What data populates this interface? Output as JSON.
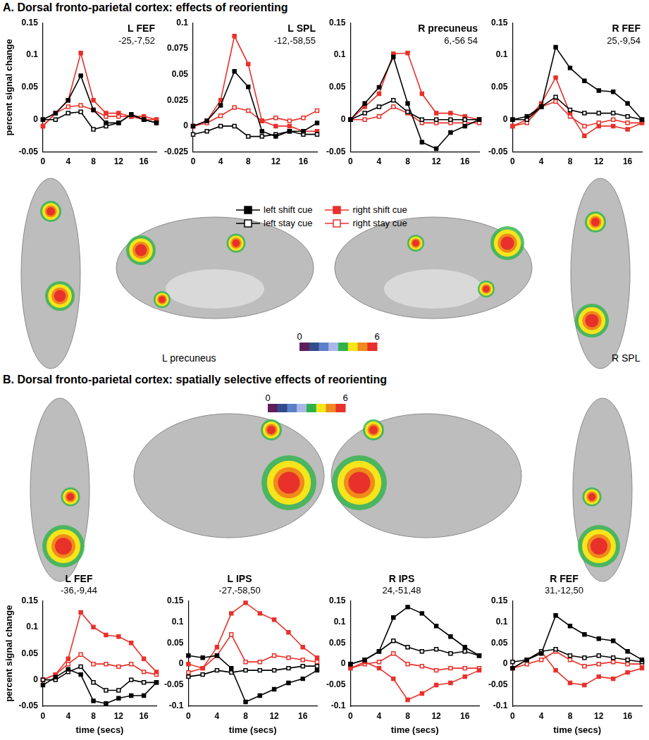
{
  "panels": [
    {
      "title": "A. Dorsal fronto-parietal cortex: effects of reorienting",
      "colorbar": {
        "range": [
          0,
          6
        ],
        "ticks": [
          0,
          6
        ]
      },
      "brain_labels": [
        "L precuneus",
        "R SPL"
      ]
    },
    {
      "title": "B. Dorsal fronto-parietal cortex: spatially selective effects of reorienting",
      "colorbar": {
        "range": [
          0,
          6
        ],
        "ticks": [
          0,
          6
        ]
      },
      "brain_labels": []
    }
  ],
  "chart_data": [
    {
      "type": "line",
      "title": "L FEF",
      "subtitle": "-25,-7,52",
      "ylabel": "percent signal change",
      "x": [
        0,
        2,
        4,
        6,
        8,
        10,
        12,
        14,
        16,
        18
      ],
      "xlim": [
        0,
        18
      ],
      "xticks": [
        0,
        4,
        8,
        12,
        16
      ],
      "ylim": [
        -0.05,
        0.15
      ],
      "yticks": [
        -0.05,
        0,
        0.05,
        0.1,
        0.15
      ],
      "grid": false,
      "series": [
        {
          "name": "left shift cue",
          "color": "#000000",
          "marker": "square",
          "values": [
            0,
            0.01,
            0.03,
            0.068,
            0.015,
            -0.005,
            -0.005,
            0.008,
            0,
            -0.005
          ]
        },
        {
          "name": "left stay cue",
          "color": "#000000",
          "marker": "open_square",
          "values": [
            0,
            0,
            0.01,
            0.012,
            -0.015,
            -0.01,
            -0.005,
            0.008,
            0,
            -0.005
          ]
        },
        {
          "name": "right shift cue",
          "color": "#e8312a",
          "marker": "square",
          "values": [
            -0.01,
            0.01,
            0.03,
            0.103,
            0.03,
            0.01,
            0.01,
            0.005,
            0.005,
            0
          ]
        },
        {
          "name": "right stay cue",
          "color": "#e8312a",
          "marker": "open_square",
          "values": [
            -0.01,
            0.01,
            0.02,
            0.022,
            0.015,
            0.005,
            0.005,
            0.005,
            0,
            0
          ]
        }
      ]
    },
    {
      "type": "line",
      "title": "L SPL",
      "subtitle": "-12,-58,55",
      "x": [
        0,
        2,
        4,
        6,
        8,
        10,
        12,
        14,
        16,
        18
      ],
      "xlim": [
        0,
        18
      ],
      "xticks": [
        0,
        4,
        8,
        12,
        16
      ],
      "ylim": [
        -0.025,
        0.1
      ],
      "yticks": [
        -0.025,
        0,
        0.025,
        0.05,
        0.075,
        0.1
      ],
      "grid": false,
      "series": [
        {
          "name": "left shift cue",
          "color": "#000000",
          "marker": "square",
          "values": [
            0,
            0.005,
            0.02,
            0.053,
            0.038,
            -0.005,
            -0.01,
            -0.005,
            -0.005,
            0.003
          ]
        },
        {
          "name": "left stay cue",
          "color": "#000000",
          "marker": "open_square",
          "values": [
            -0.008,
            -0.005,
            0,
            0,
            -0.01,
            -0.01,
            -0.008,
            -0.005,
            -0.008,
            -0.008
          ]
        },
        {
          "name": "right shift cue",
          "color": "#e8312a",
          "marker": "square",
          "values": [
            0,
            0.005,
            0.025,
            0.087,
            0.06,
            0.005,
            0,
            0,
            -0.005,
            -0.005
          ]
        },
        {
          "name": "right stay cue",
          "color": "#e8312a",
          "marker": "open_square",
          "values": [
            0,
            0.003,
            0.01,
            0.018,
            0.015,
            0.005,
            0.008,
            0.005,
            0.008,
            0.015
          ]
        }
      ]
    },
    {
      "type": "line",
      "title": "R precuneus",
      "subtitle": "6,-56 54",
      "x": [
        0,
        2,
        4,
        6,
        8,
        10,
        12,
        14,
        16,
        18
      ],
      "xlim": [
        0,
        18
      ],
      "xticks": [
        0,
        4,
        8,
        12,
        16
      ],
      "ylim": [
        -0.05,
        0.15
      ],
      "yticks": [
        -0.05,
        0,
        0.05,
        0.1,
        0.15
      ],
      "grid": false,
      "series": [
        {
          "name": "left shift cue",
          "color": "#000000",
          "marker": "square",
          "values": [
            0,
            0.025,
            0.05,
            0.097,
            0.025,
            -0.035,
            -0.045,
            -0.02,
            -0.01,
            0
          ]
        },
        {
          "name": "left stay cue",
          "color": "#000000",
          "marker": "open_square",
          "values": [
            0,
            0.01,
            0.02,
            0.03,
            0.012,
            0,
            0,
            0,
            0,
            0
          ]
        },
        {
          "name": "right shift cue",
          "color": "#e8312a",
          "marker": "square",
          "values": [
            0,
            0.02,
            0.04,
            0.102,
            0.103,
            0.04,
            0.01,
            0.01,
            0.005,
            0
          ]
        },
        {
          "name": "right stay cue",
          "color": "#e8312a",
          "marker": "open_square",
          "values": [
            0,
            0,
            0.005,
            0.02,
            0.01,
            -0.005,
            -0.005,
            -0.005,
            -0.005,
            -0.005
          ]
        }
      ]
    },
    {
      "type": "line",
      "title": "R FEF",
      "subtitle": "25,-9,54",
      "x": [
        0,
        2,
        4,
        6,
        8,
        10,
        12,
        14,
        16,
        18
      ],
      "xlim": [
        0,
        18
      ],
      "xticks": [
        0,
        4,
        8,
        12,
        16
      ],
      "ylim": [
        -0.05,
        0.15
      ],
      "yticks": [
        -0.05,
        0,
        0.05,
        0.1,
        0.15
      ],
      "grid": false,
      "series": [
        {
          "name": "left shift cue",
          "color": "#000000",
          "marker": "square",
          "values": [
            0,
            0.005,
            0.02,
            0.112,
            0.08,
            0.06,
            0.045,
            0.043,
            0.025,
            0
          ]
        },
        {
          "name": "left stay cue",
          "color": "#000000",
          "marker": "open_square",
          "values": [
            0,
            0,
            0.02,
            0.035,
            0.015,
            0.01,
            0.01,
            0.01,
            0.005,
            0
          ]
        },
        {
          "name": "right shift cue",
          "color": "#e8312a",
          "marker": "square",
          "values": [
            -0.01,
            0,
            0.025,
            0.065,
            0.01,
            -0.025,
            -0.01,
            -0.01,
            -0.015,
            -0.005
          ]
        },
        {
          "name": "right stay cue",
          "color": "#e8312a",
          "marker": "open_square",
          "values": [
            -0.01,
            -0.005,
            0.02,
            0.028,
            0.005,
            -0.01,
            -0.005,
            0,
            -0.005,
            -0.005
          ]
        }
      ]
    },
    {
      "type": "line",
      "title": "L FEF",
      "subtitle": "-36,-9,44",
      "ylabel": "percent signal change",
      "xlabel": "time (secs)",
      "x": [
        0,
        2,
        4,
        6,
        8,
        10,
        12,
        14,
        16,
        18
      ],
      "xlim": [
        0,
        18
      ],
      "xticks": [
        0,
        4,
        8,
        12,
        16
      ],
      "ylim": [
        -0.05,
        0.15
      ],
      "yticks": [
        -0.05,
        0,
        0.05,
        0.1,
        0.15
      ],
      "grid": false,
      "series": [
        {
          "name": "left shift cue",
          "color": "#000000",
          "marker": "square",
          "values": [
            -0.01,
            0.005,
            0.02,
            0.01,
            -0.04,
            -0.045,
            -0.035,
            -0.03,
            -0.03,
            -0.005
          ]
        },
        {
          "name": "left stay cue",
          "color": "#000000",
          "marker": "open_square",
          "values": [
            0,
            0,
            0.015,
            0.025,
            -0.005,
            -0.02,
            -0.02,
            0,
            -0.005,
            -0.005
          ]
        },
        {
          "name": "right shift cue",
          "color": "#e8312a",
          "marker": "square",
          "values": [
            0,
            0.01,
            0.04,
            0.128,
            0.1,
            0.085,
            0.082,
            0.07,
            0.04,
            0.015
          ]
        },
        {
          "name": "right stay cue",
          "color": "#e8312a",
          "marker": "open_square",
          "values": [
            0,
            0.01,
            0.03,
            0.048,
            0.03,
            0.03,
            0.025,
            0.03,
            0.015,
            0.01
          ]
        }
      ]
    },
    {
      "type": "line",
      "title": "L IPS",
      "subtitle": "-27,-58,50",
      "xlabel": "time (secs)",
      "x": [
        0,
        2,
        4,
        6,
        8,
        10,
        12,
        14,
        16,
        18
      ],
      "xlim": [
        0,
        18
      ],
      "xticks": [
        0,
        4,
        8,
        12,
        16
      ],
      "ylim": [
        -0.1,
        0.15
      ],
      "yticks": [
        -0.1,
        -0.05,
        0,
        0.05,
        0.1,
        0.15
      ],
      "grid": false,
      "series": [
        {
          "name": "left shift cue",
          "color": "#000000",
          "marker": "square",
          "values": [
            0.02,
            0.015,
            0.02,
            -0.01,
            -0.09,
            -0.075,
            -0.06,
            -0.045,
            -0.035,
            -0.015
          ]
        },
        {
          "name": "left stay cue",
          "color": "#000000",
          "marker": "open_square",
          "values": [
            -0.03,
            -0.025,
            -0.015,
            -0.02,
            -0.015,
            -0.015,
            -0.015,
            -0.01,
            -0.005,
            -0.005
          ]
        },
        {
          "name": "right shift cue",
          "color": "#e8312a",
          "marker": "square",
          "values": [
            0,
            -0.01,
            0.04,
            0.12,
            0.145,
            0.12,
            0.105,
            0.075,
            0.04,
            0.015
          ]
        },
        {
          "name": "right stay cue",
          "color": "#e8312a",
          "marker": "open_square",
          "values": [
            -0.02,
            -0.01,
            0.02,
            0.07,
            0.005,
            0.005,
            0.02,
            0.015,
            0.01,
            0.005
          ]
        }
      ]
    },
    {
      "type": "line",
      "title": "R IPS",
      "subtitle": "24,-51,48",
      "xlabel": "time (secs)",
      "x": [
        0,
        2,
        4,
        6,
        8,
        10,
        12,
        14,
        16,
        18
      ],
      "xlim": [
        0,
        18
      ],
      "xticks": [
        0,
        4,
        8,
        12,
        16
      ],
      "ylim": [
        -0.1,
        0.15
      ],
      "yticks": [
        -0.1,
        -0.05,
        0,
        0.05,
        0.1,
        0.15
      ],
      "grid": false,
      "series": [
        {
          "name": "left shift cue",
          "color": "#000000",
          "marker": "square",
          "values": [
            0,
            0.01,
            0.03,
            0.11,
            0.135,
            0.12,
            0.09,
            0.065,
            0.04,
            0.02
          ]
        },
        {
          "name": "left stay cue",
          "color": "#000000",
          "marker": "open_square",
          "values": [
            0,
            0.01,
            0.03,
            0.055,
            0.04,
            0.03,
            0.035,
            0.025,
            0.03,
            0.02
          ]
        },
        {
          "name": "right shift cue",
          "color": "#e8312a",
          "marker": "square",
          "values": [
            -0.01,
            0.005,
            -0.01,
            -0.035,
            -0.085,
            -0.07,
            -0.05,
            -0.045,
            -0.03,
            -0.015
          ]
        },
        {
          "name": "right stay cue",
          "color": "#e8312a",
          "marker": "open_square",
          "values": [
            -0.01,
            0,
            0.005,
            0.025,
            0,
            -0.005,
            -0.015,
            -0.01,
            -0.01,
            -0.01
          ]
        }
      ]
    },
    {
      "type": "line",
      "title": "R FEF",
      "subtitle": "31,-12,50",
      "xlabel": "time (secs)",
      "x": [
        0,
        2,
        4,
        6,
        8,
        10,
        12,
        14,
        16,
        18
      ],
      "xlim": [
        0,
        18
      ],
      "xticks": [
        0,
        4,
        8,
        12,
        16
      ],
      "ylim": [
        -0.1,
        0.15
      ],
      "yticks": [
        -0.1,
        -0.05,
        0,
        0.05,
        0.1,
        0.15
      ],
      "grid": false,
      "series": [
        {
          "name": "left shift cue",
          "color": "#000000",
          "marker": "square",
          "values": [
            -0.01,
            0.01,
            0.025,
            0.115,
            0.09,
            0.07,
            0.06,
            0.055,
            0.03,
            0.01
          ]
        },
        {
          "name": "left stay cue",
          "color": "#000000",
          "marker": "open_square",
          "values": [
            0.005,
            0.01,
            0.03,
            0.035,
            0.02,
            0.015,
            0.02,
            0.015,
            0.01,
            0.005
          ]
        },
        {
          "name": "right shift cue",
          "color": "#e8312a",
          "marker": "square",
          "values": [
            -0.01,
            0.01,
            0.03,
            -0.015,
            -0.045,
            -0.05,
            -0.03,
            -0.035,
            -0.02,
            -0.01
          ]
        },
        {
          "name": "right stay cue",
          "color": "#e8312a",
          "marker": "open_square",
          "values": [
            -0.01,
            0,
            0.01,
            0.03,
            0.01,
            -0.005,
            0,
            0.005,
            0,
            0
          ]
        }
      ]
    }
  ]
}
